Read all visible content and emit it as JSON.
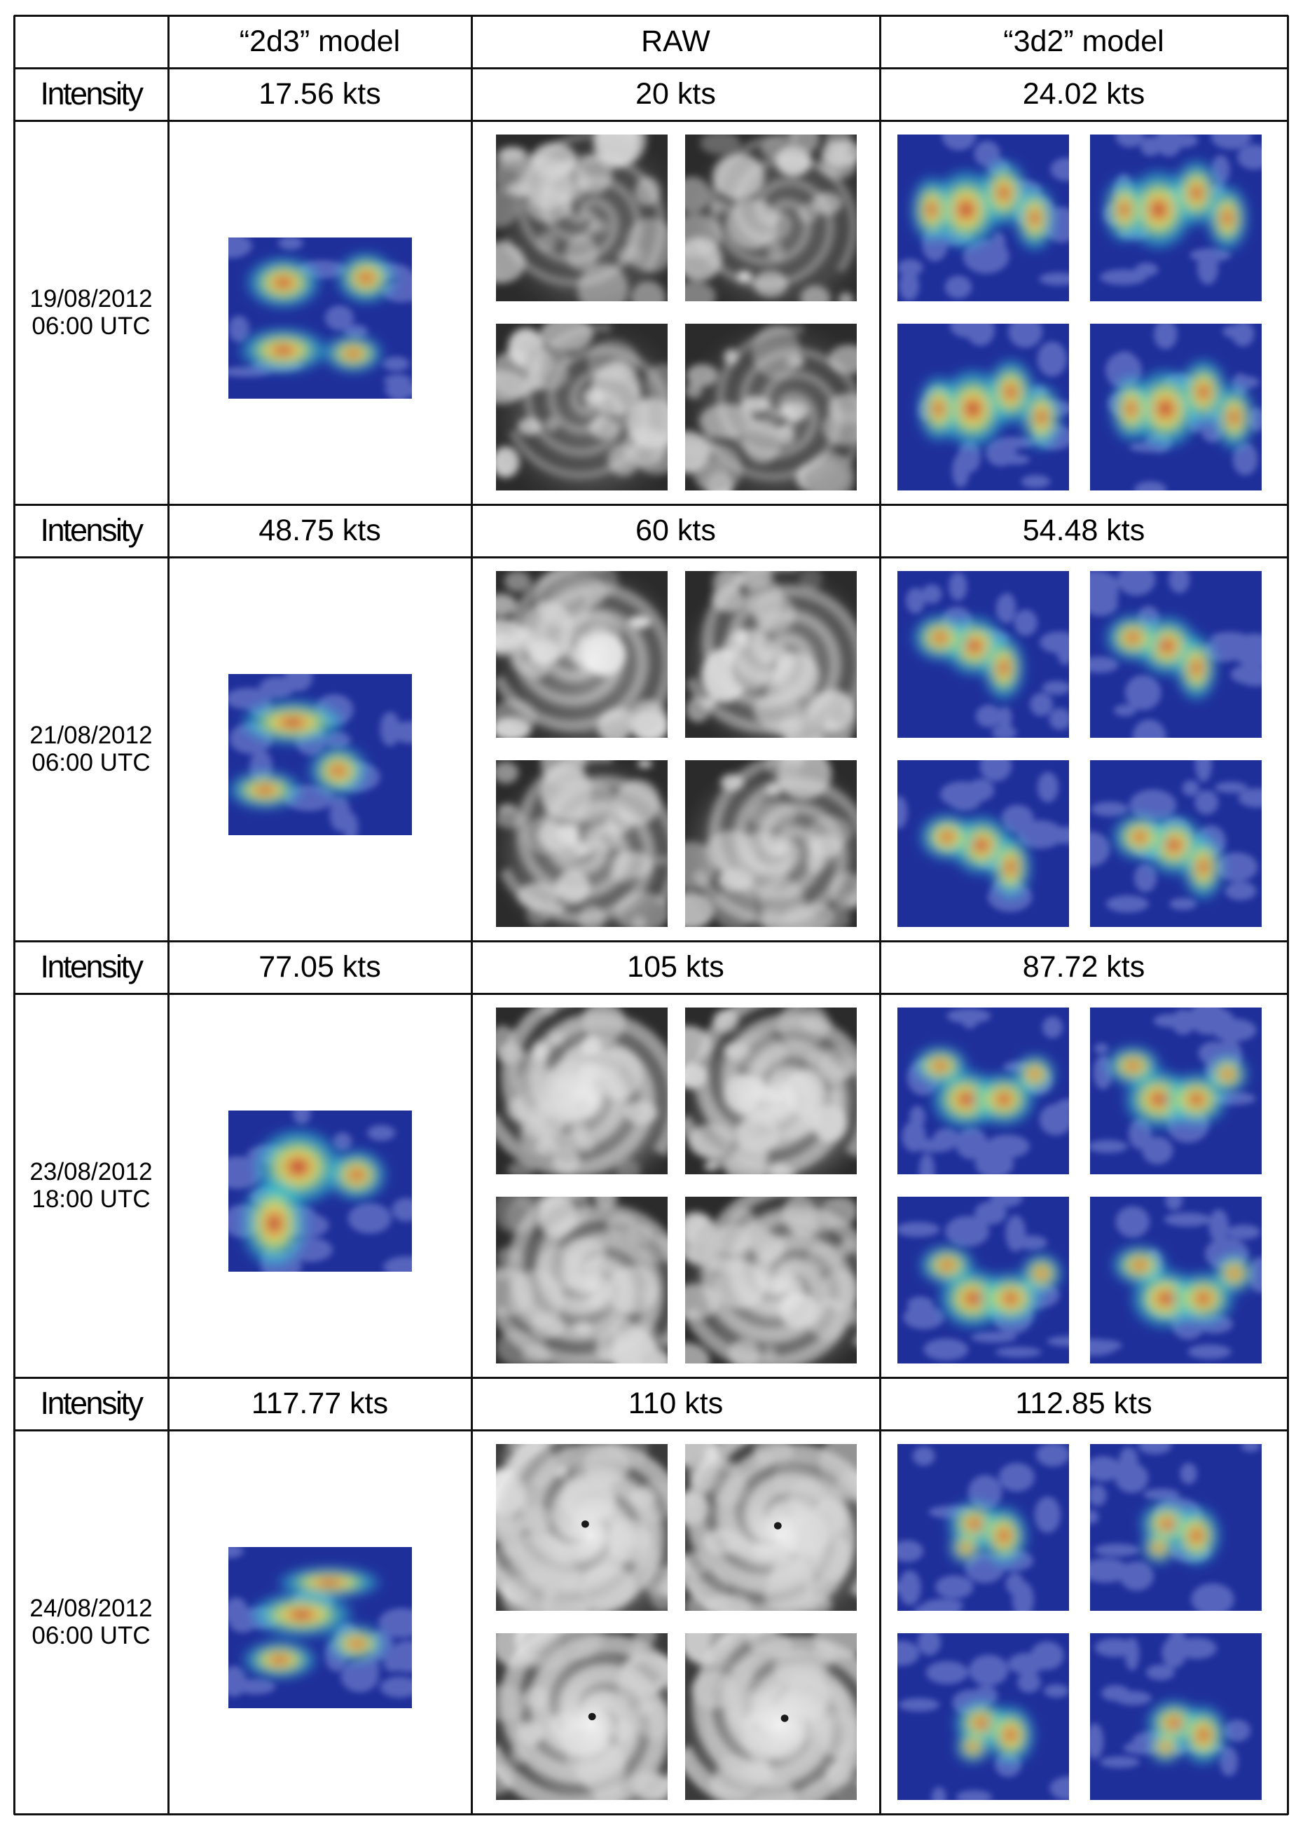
{
  "header": {
    "model_2d3": "“2d3” model",
    "raw": "RAW",
    "model_3d2": "“3d2” model"
  },
  "rows": [
    {
      "intensity_label": "Intensity",
      "intensity_2d3": "17.56 kts",
      "intensity_raw": "20 kts",
      "intensity_3d2": "24.02 kts",
      "datetime": "19/08/2012\n06:00 UTC"
    },
    {
      "intensity_label": "Intensity",
      "intensity_2d3": "48.75 kts",
      "intensity_raw": "60 kts",
      "intensity_3d2": "54.48 kts",
      "datetime": "21/08/2012\n06:00 UTC"
    },
    {
      "intensity_label": "Intensity",
      "intensity_2d3": "77.05 kts",
      "intensity_raw": "105 kts",
      "intensity_3d2": "87.72 kts",
      "datetime": "23/08/2012\n18:00 UTC"
    },
    {
      "intensity_label": "Intensity",
      "intensity_2d3": "117.77 kts",
      "intensity_raw": "110 kts",
      "intensity_3d2": "112.85 kts",
      "datetime": "24/08/2012\n06:00 UTC"
    }
  ]
}
